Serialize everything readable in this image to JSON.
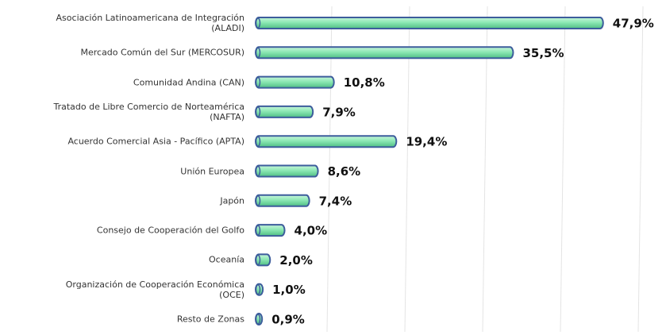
{
  "chart_data": {
    "type": "bar",
    "orientation": "horizontal",
    "categories": [
      "Asociación Latinoamericana de Integración\n(ALADI)",
      "Mercado Común del Sur (MERCOSUR)",
      "Comunidad Andina (CAN)",
      "Tratado de Libre Comercio de Norteamérica\n(NAFTA)",
      "Acuerdo Comercial Asia - Pacífico (APTA)",
      "Unión Europea",
      "Japón",
      "Consejo de Cooperación del Golfo",
      "Oceanía",
      "Organización de Cooperación Económica\n(OCE)",
      "Resto de Zonas"
    ],
    "values": [
      47.9,
      35.5,
      10.8,
      7.9,
      19.4,
      8.6,
      7.4,
      4.0,
      2.0,
      1.0,
      0.9
    ],
    "value_labels": [
      "47,9%",
      "35,5%",
      "10,8%",
      "7,9%",
      "19,4%",
      "8,6%",
      "7,4%",
      "4,0%",
      "2,0%",
      "1,0%",
      "0,9%"
    ],
    "color": "#8ce8b4",
    "edge_color": "#3d5d9c"
  }
}
